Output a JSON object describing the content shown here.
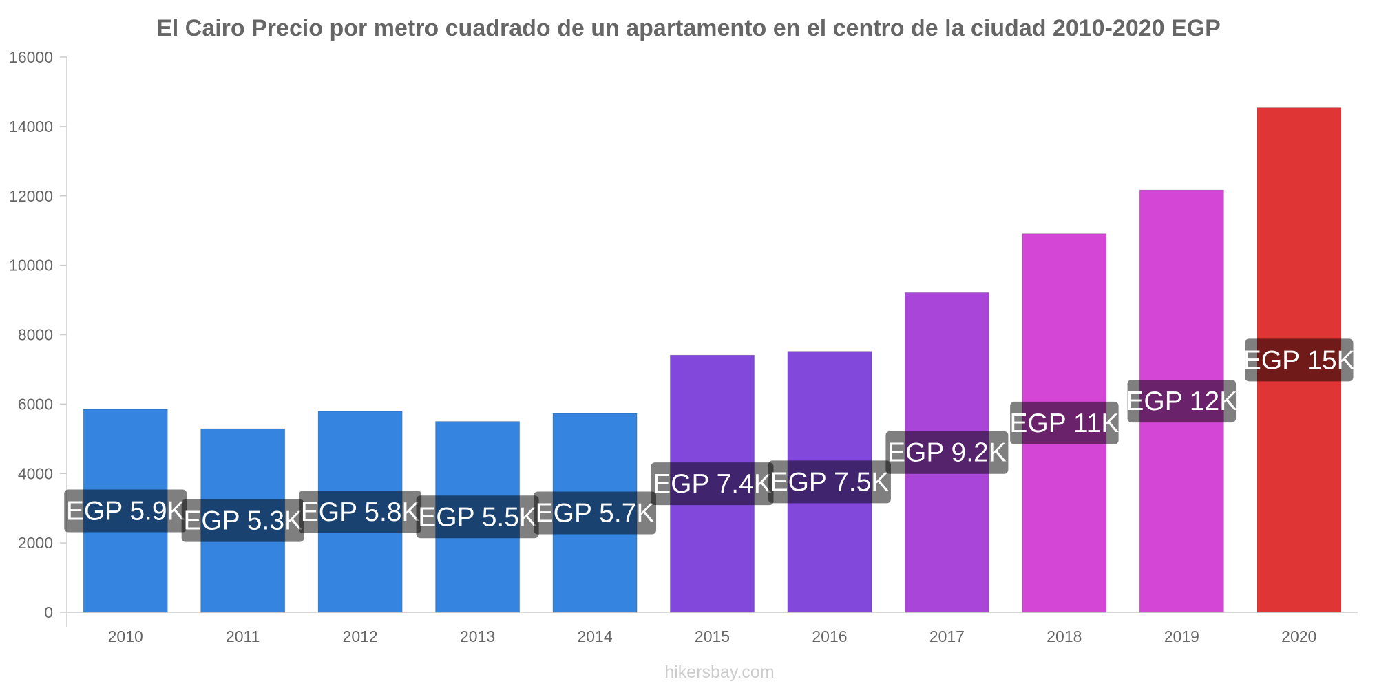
{
  "chart_data": {
    "type": "bar",
    "title": "El Cairo Precio por metro cuadrado de un apartamento en el centro de la ciudad 2010-2020 EGP",
    "xlabel": "",
    "ylabel": "",
    "categories": [
      "2010",
      "2011",
      "2012",
      "2013",
      "2014",
      "2015",
      "2016",
      "2017",
      "2018",
      "2019",
      "2020"
    ],
    "values": [
      5850,
      5290,
      5790,
      5500,
      5730,
      7410,
      7520,
      9210,
      10910,
      12170,
      14540
    ],
    "data_labels": [
      "EGP 5.9K",
      "EGP 5.3K",
      "EGP 5.8K",
      "EGP 5.5K",
      "EGP 5.7K",
      "EGP 7.4K",
      "EGP 7.5K",
      "EGP 9.2K",
      "EGP 11K",
      "EGP 12K",
      "EGP 15K"
    ],
    "bar_colors": [
      "#3584e0",
      "#3584e0",
      "#3584e0",
      "#3584e0",
      "#3584e0",
      "#8148db",
      "#8148db",
      "#a946d9",
      "#d446d5",
      "#d446d5",
      "#e03535"
    ],
    "ylim": [
      0,
      16000
    ],
    "yticks": [
      0,
      2000,
      4000,
      6000,
      8000,
      10000,
      12000,
      14000,
      16000
    ],
    "grid": false,
    "legend": "none"
  },
  "watermark": "hikersbay.com"
}
